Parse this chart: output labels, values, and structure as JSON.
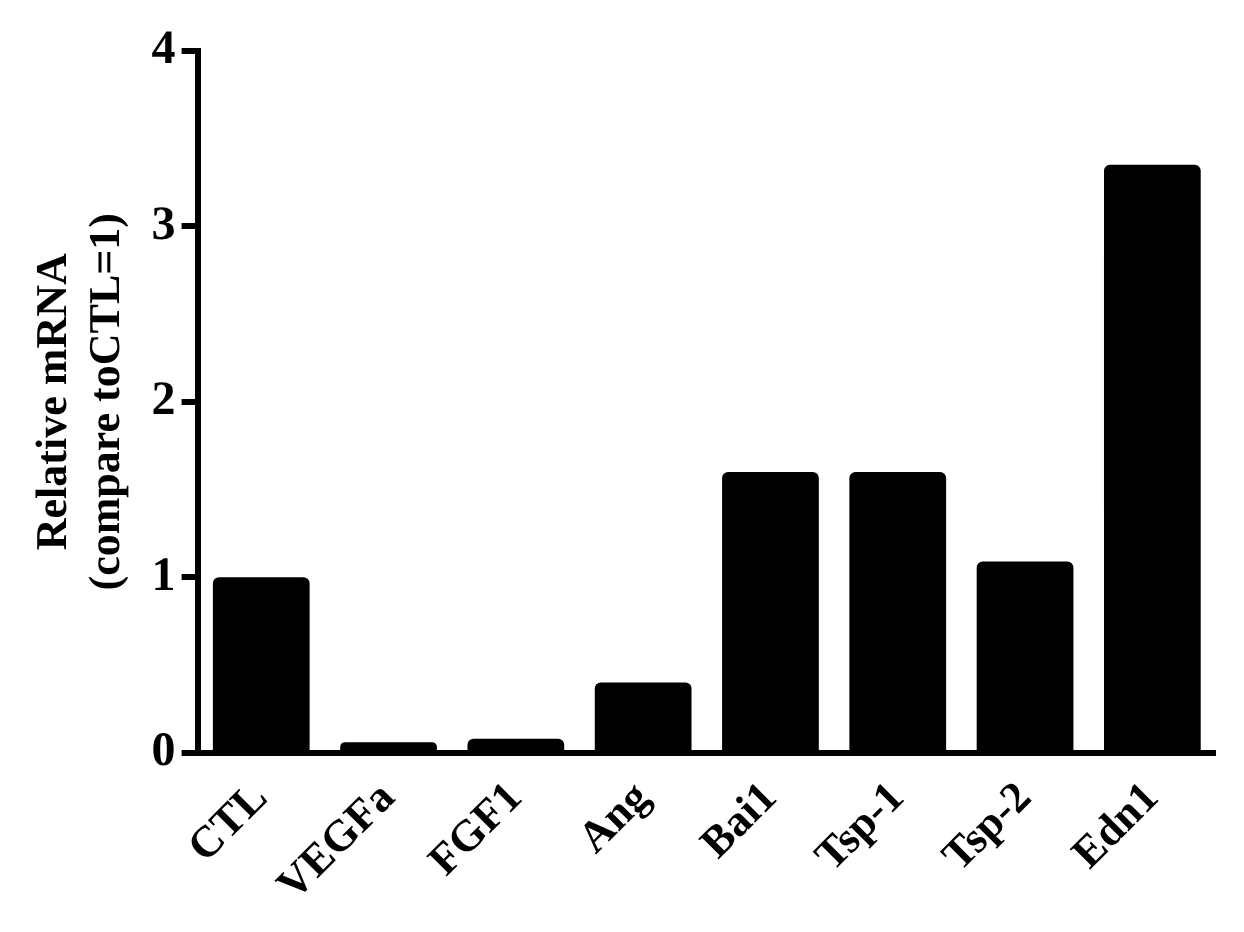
{
  "chart_data": {
    "type": "bar",
    "ylabel": "Relative mRNA\n(compare toCTL=1)",
    "categories": [
      "CTL",
      "VEGFa",
      "FGF1",
      "Ang",
      "Bai1",
      "Tsp-1",
      "Tsp-2",
      "Edn1"
    ],
    "values": [
      1.0,
      0.06,
      0.08,
      0.4,
      1.6,
      1.6,
      1.09,
      3.35
    ],
    "color": "#000000",
    "ylim": [
      0,
      4
    ],
    "yticks": [
      0,
      1,
      2,
      3,
      4
    ],
    "grid": false,
    "legend": false
  }
}
